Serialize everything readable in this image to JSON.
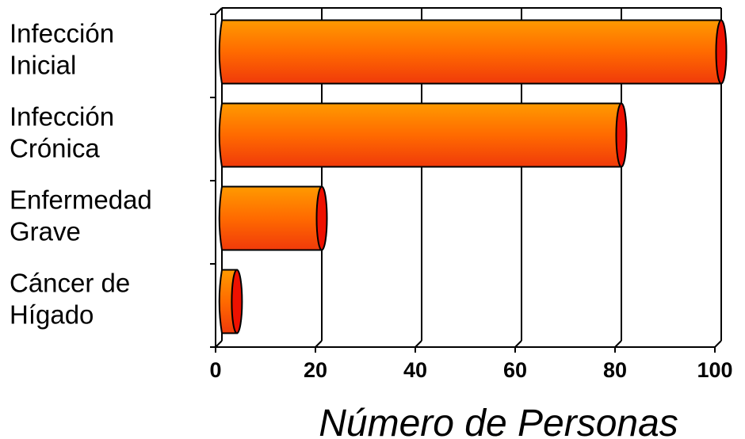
{
  "chart_data": {
    "type": "bar",
    "orientation": "horizontal",
    "categories": [
      [
        "Infección",
        "Inicial"
      ],
      [
        "Infección",
        "Crónica"
      ],
      [
        "Enfermedad",
        "Grave"
      ],
      [
        "Cáncer de",
        "Hígado"
      ]
    ],
    "values": [
      100,
      80,
      20,
      3
    ],
    "xlabel": "Número de Personas",
    "xlim": [
      0,
      100
    ],
    "xticks": [
      "0",
      "20",
      "40",
      "60",
      "80",
      "100"
    ],
    "grid": "vertical",
    "colors": {
      "bar_top": "#ff9a00",
      "bar_bottom": "#f03a0a",
      "bar_cap": "#ee1100",
      "grid": "#000000"
    }
  }
}
